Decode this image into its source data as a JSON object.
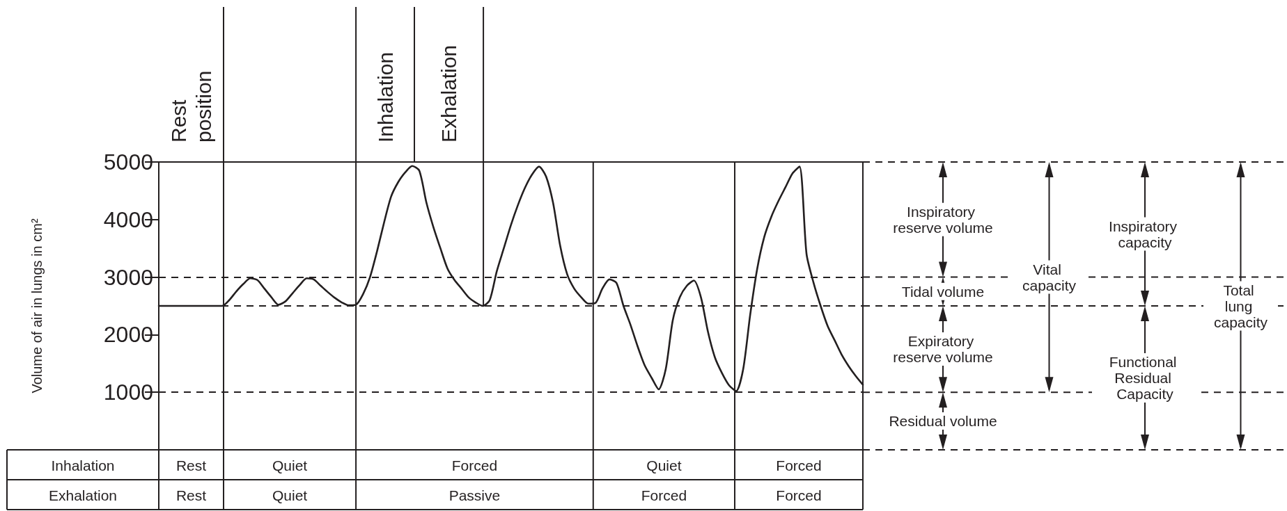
{
  "chart_data": {
    "type": "line",
    "ylabel": "Volume of air in lungs in cm²",
    "categories": [
      null,
      null,
      null,
      null,
      null,
      null,
      null,
      null,
      null,
      null,
      null,
      null,
      null,
      null,
      null,
      null,
      null,
      null,
      null,
      null,
      null,
      null,
      null,
      null,
      null,
      null,
      null,
      null,
      null,
      null,
      null,
      null,
      null,
      null,
      null,
      null,
      null,
      null,
      null,
      null,
      null,
      null,
      null,
      null,
      null,
      null,
      null,
      null,
      null,
      null,
      null,
      null,
      null,
      null,
      null,
      null,
      null,
      null,
      null,
      null,
      null,
      null,
      null,
      null,
      null,
      null,
      null,
      null,
      null,
      null,
      null,
      null,
      null,
      null,
      null,
      null,
      null,
      null,
      null,
      null,
      null,
      null,
      null,
      null,
      null,
      null,
      null,
      null,
      null,
      null,
      null,
      null,
      null,
      null,
      null,
      null,
      null,
      null,
      null,
      null,
      null
    ],
    "series": [
      {
        "color": "#231f20",
        "values": [
          2500,
          2500,
          2500,
          2500,
          2500,
          2500,
          2500,
          2500,
          2500,
          2500,
          2600,
          2750,
          2880,
          2980,
          2950,
          2800,
          2650,
          2520,
          2580,
          2720,
          2860,
          2980,
          2960,
          2850,
          2740,
          2640,
          2560,
          2510,
          2520,
          2700,
          3000,
          3450,
          3950,
          4400,
          4650,
          4820,
          4930,
          4850,
          4300,
          3870,
          3500,
          3150,
          2950,
          2800,
          2650,
          2560,
          2500,
          2600,
          3100,
          3500,
          3900,
          4250,
          4550,
          4780,
          4920,
          4750,
          4290,
          3550,
          3050,
          2800,
          2650,
          2540,
          2550,
          2800,
          2960,
          2900,
          2500,
          2170,
          1800,
          1470,
          1250,
          1050,
          1400,
          2250,
          2650,
          2850,
          2940,
          2650,
          2050,
          1600,
          1330,
          1120,
          1020,
          1400,
          2350,
          3150,
          3700,
          4050,
          4320,
          4560,
          4800,
          4920,
          3400,
          2900,
          2500,
          2150,
          1900,
          1650,
          1450,
          1280,
          1130
        ]
      }
    ],
    "ylim": [
      0,
      5000
    ],
    "yticks": [
      1000,
      2000,
      3000,
      4000,
      5000
    ],
    "tick_labels": "y",
    "marker": "none",
    "line_style": "solid",
    "ref_lines": [
      {
        "axis": "y",
        "value": 3000,
        "line_style": "dashed"
      },
      {
        "axis": "y",
        "value": 2500,
        "line_style": "dashed"
      },
      {
        "axis": "y",
        "value": 1000,
        "line_style": "dashed"
      }
    ],
    "annotations": [
      "Rest position",
      "Inhalation",
      "Exhalation",
      "Inhalation",
      "Rest",
      "Quiet",
      "Forced",
      "Quiet",
      "Forced",
      "Exhalation",
      "Rest",
      "Quiet",
      "Passive",
      "Forced",
      "Forced",
      "Inspiratory reserve volume",
      "Tidal volume",
      "Expiratory reserve volume",
      "Residual volume",
      "Vital capacity",
      "Inspiratory capacity",
      "Functional Residual Capacity",
      "Total lung capacity"
    ]
  }
}
